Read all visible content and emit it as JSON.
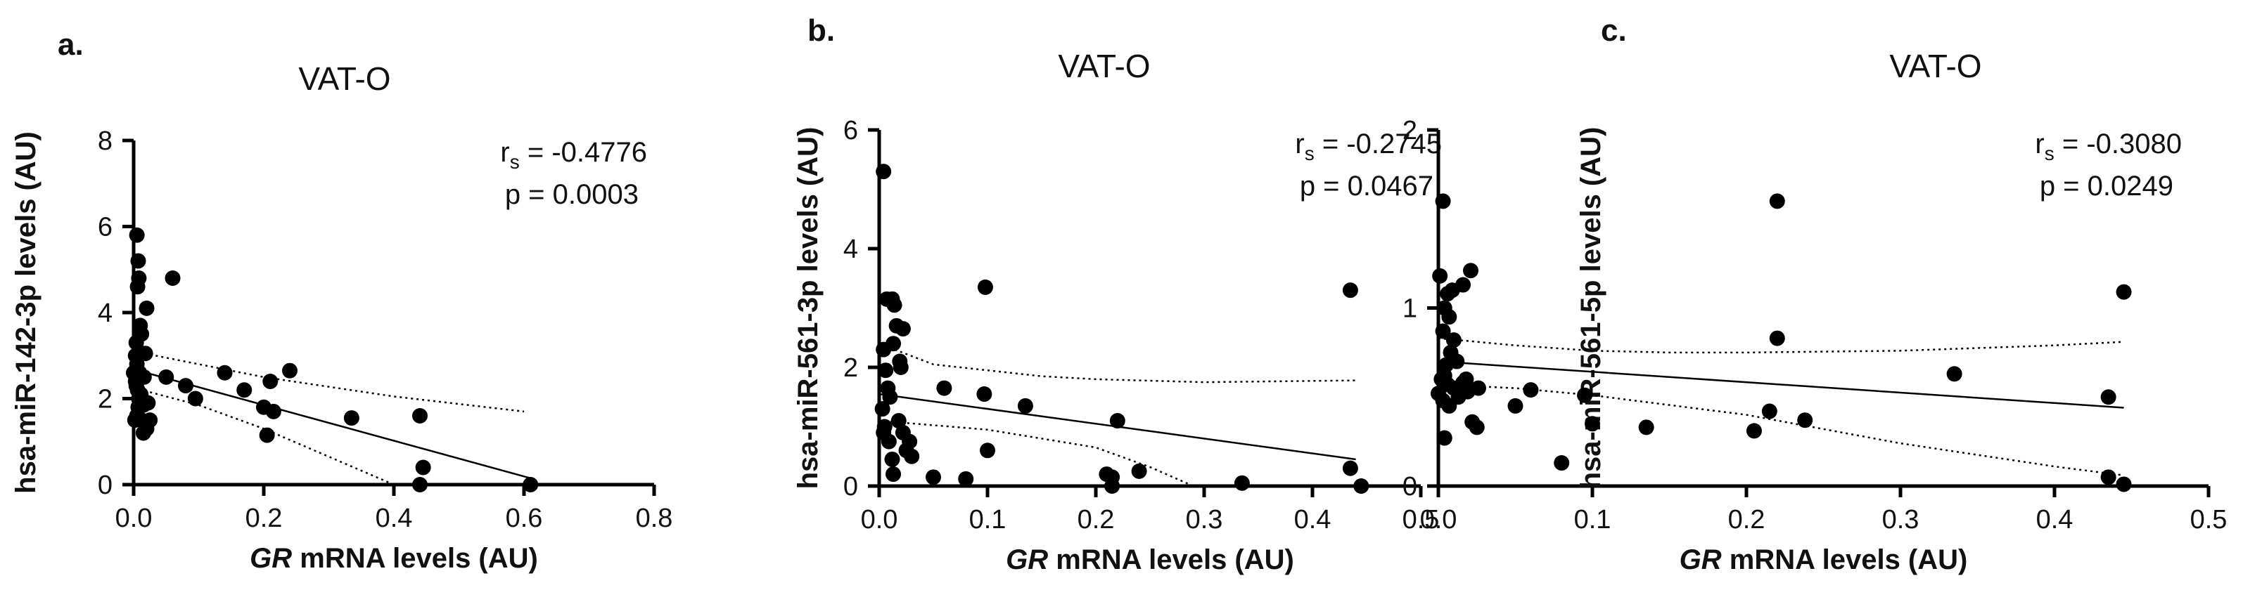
{
  "chart_data": [
    {
      "panel_label": "a.",
      "type": "scatter",
      "title": "VAT-O",
      "xlabel_italic": "GR",
      "xlabel_rest": " mRNA levels (AU)",
      "ylabel": "hsa-miR-142-3p levels (AU)",
      "xlim": [
        0,
        0.8
      ],
      "ylim": [
        0,
        8
      ],
      "xticks": [
        0.0,
        0.2,
        0.4,
        0.6,
        0.8
      ],
      "xtick_labels": [
        "0.0",
        "0.2",
        "0.4",
        "0.6",
        "0.8"
      ],
      "yticks": [
        0,
        2,
        4,
        6,
        8
      ],
      "ytick_labels": [
        "0",
        "2",
        "4",
        "6",
        "8"
      ],
      "stat_r": "r",
      "stat_r_sub": "s",
      "stat_r_value": " = -0.4776",
      "stat_p": "p = 0.0003",
      "points": [
        [
          0.005,
          5.8
        ],
        [
          0.007,
          5.2
        ],
        [
          0.008,
          4.8
        ],
        [
          0.006,
          4.6
        ],
        [
          0.02,
          4.1
        ],
        [
          0.06,
          4.8
        ],
        [
          0.01,
          3.7
        ],
        [
          0.012,
          3.5
        ],
        [
          0.018,
          3.05
        ],
        [
          0.004,
          3.3
        ],
        [
          0.005,
          2.8
        ],
        [
          0.009,
          2.6
        ],
        [
          0.003,
          2.4
        ],
        [
          0.006,
          2.2
        ],
        [
          0.008,
          2.0
        ],
        [
          0.01,
          1.9
        ],
        [
          0.015,
          1.85
        ],
        [
          0.005,
          1.6
        ],
        [
          0.002,
          1.5
        ],
        [
          0.012,
          1.5
        ],
        [
          0.02,
          1.3
        ],
        [
          0.015,
          1.2
        ],
        [
          0.025,
          1.5
        ],
        [
          0.022,
          1.9
        ],
        [
          0.016,
          2.5
        ],
        [
          0.05,
          2.5
        ],
        [
          0.08,
          2.3
        ],
        [
          0.095,
          2.0
        ],
        [
          0.14,
          2.6
        ],
        [
          0.17,
          2.2
        ],
        [
          0.2,
          1.8
        ],
        [
          0.21,
          2.4
        ],
        [
          0.215,
          1.7
        ],
        [
          0.205,
          1.15
        ],
        [
          0.24,
          2.65
        ],
        [
          0.335,
          1.55
        ],
        [
          0.44,
          1.6
        ],
        [
          0.445,
          0.4
        ],
        [
          0.44,
          0.0
        ],
        [
          0.61,
          0.0
        ],
        [
          0.0,
          2.6
        ],
        [
          0.003,
          3.0
        ],
        [
          0.007,
          1.8
        ],
        [
          0.011,
          2.1
        ],
        [
          0.004,
          2.3
        ]
      ],
      "fit": {
        "x": [
          0.0,
          0.61
        ],
        "y": [
          2.68,
          0.15
        ]
      },
      "ci_upper": {
        "x": [
          0.0,
          0.2,
          0.4,
          0.6
        ],
        "y": [
          3.1,
          2.5,
          2.05,
          1.7
        ]
      },
      "ci_lower": {
        "x": [
          0.0,
          0.1,
          0.2,
          0.3,
          0.4
        ],
        "y": [
          2.25,
          1.85,
          1.3,
          0.65,
          0.0
        ]
      }
    },
    {
      "panel_label": "b.",
      "type": "scatter",
      "title": "VAT-O",
      "xlabel_italic": "GR",
      "xlabel_rest": " mRNA levels (AU)",
      "ylabel": "hsa-miR-561-3p levels (AU)",
      "xlim": [
        0,
        0.5
      ],
      "ylim": [
        0,
        6
      ],
      "xticks": [
        0.0,
        0.1,
        0.2,
        0.3,
        0.4,
        0.5
      ],
      "xtick_labels": [
        "0.0",
        "0.1",
        "0.2",
        "0.3",
        "0.4",
        "0.5"
      ],
      "yticks": [
        0,
        2,
        4,
        6
      ],
      "ytick_labels": [
        "0",
        "2",
        "4",
        "6"
      ],
      "stat_r": "r",
      "stat_r_sub": "s",
      "stat_r_value": " = -0.2745",
      "stat_p": "p = 0.0467",
      "points": [
        [
          0.004,
          5.3
        ],
        [
          0.007,
          3.15
        ],
        [
          0.012,
          3.15
        ],
        [
          0.014,
          3.05
        ],
        [
          0.016,
          2.7
        ],
        [
          0.022,
          2.65
        ],
        [
          0.019,
          2.1
        ],
        [
          0.02,
          2.0
        ],
        [
          0.013,
          2.4
        ],
        [
          0.004,
          2.3
        ],
        [
          0.006,
          1.95
        ],
        [
          0.008,
          1.65
        ],
        [
          0.01,
          1.5
        ],
        [
          0.003,
          1.3
        ],
        [
          0.005,
          1.0
        ],
        [
          0.004,
          0.9
        ],
        [
          0.009,
          0.75
        ],
        [
          0.012,
          0.45
        ],
        [
          0.013,
          0.2
        ],
        [
          0.018,
          1.1
        ],
        [
          0.022,
          0.9
        ],
        [
          0.025,
          0.6
        ],
        [
          0.028,
          0.75
        ],
        [
          0.03,
          0.5
        ],
        [
          0.06,
          1.65
        ],
        [
          0.097,
          1.55
        ],
        [
          0.098,
          3.35
        ],
        [
          0.1,
          0.6
        ],
        [
          0.135,
          1.35
        ],
        [
          0.05,
          0.15
        ],
        [
          0.08,
          0.12
        ],
        [
          0.21,
          0.2
        ],
        [
          0.215,
          0.15
        ],
        [
          0.215,
          0.0
        ],
        [
          0.22,
          1.1
        ],
        [
          0.24,
          0.25
        ],
        [
          0.335,
          0.05
        ],
        [
          0.435,
          3.3
        ],
        [
          0.435,
          0.3
        ],
        [
          0.445,
          0.0
        ]
      ],
      "fit": {
        "x": [
          0.0,
          0.44
        ],
        "y": [
          1.55,
          0.45
        ]
      },
      "ci_upper": {
        "x": [
          0.0,
          0.05,
          0.1,
          0.15,
          0.2,
          0.3,
          0.44
        ],
        "y": [
          2.4,
          2.05,
          1.95,
          1.85,
          1.8,
          1.75,
          1.78
        ]
      },
      "ci_lower": {
        "x": [
          0.0,
          0.1,
          0.2,
          0.25,
          0.29
        ],
        "y": [
          1.1,
          0.95,
          0.65,
          0.32,
          0.0
        ]
      }
    },
    {
      "panel_label": "c.",
      "type": "scatter",
      "title": "VAT-O",
      "xlabel_italic": "GR",
      "xlabel_rest": " mRNA levels (AU)",
      "ylabel": "hsa-miR-561-5p levels (AU)",
      "xlim": [
        0,
        0.5
      ],
      "ylim": [
        0,
        2
      ],
      "xticks": [
        0.0,
        0.1,
        0.2,
        0.3,
        0.4,
        0.5
      ],
      "xtick_labels": [
        "0.0",
        "0.1",
        "0.2",
        "0.3",
        "0.4",
        "0.5"
      ],
      "yticks": [
        0,
        1,
        2
      ],
      "ytick_labels": [
        "0",
        "1",
        "2"
      ],
      "stat_r": "r",
      "stat_r_sub": "s",
      "stat_r_value": " = -0.3080",
      "stat_p": "p = 0.0249",
      "points": [
        [
          0.003,
          1.6
        ],
        [
          0.001,
          1.18
        ],
        [
          0.006,
          1.08
        ],
        [
          0.009,
          1.1
        ],
        [
          0.016,
          1.13
        ],
        [
          0.021,
          1.21
        ],
        [
          0.004,
          1.0
        ],
        [
          0.007,
          0.95
        ],
        [
          0.003,
          0.87
        ],
        [
          0.01,
          0.82
        ],
        [
          0.008,
          0.75
        ],
        [
          0.012,
          0.7
        ],
        [
          0.005,
          0.68
        ],
        [
          0.004,
          0.62
        ],
        [
          0.002,
          0.6
        ],
        [
          0.006,
          0.57
        ],
        [
          0.01,
          0.55
        ],
        [
          0.013,
          0.5
        ],
        [
          0.003,
          0.48
        ],
        [
          0.007,
          0.45
        ],
        [
          0.016,
          0.58
        ],
        [
          0.018,
          0.6
        ],
        [
          0.019,
          0.53
        ],
        [
          0.026,
          0.55
        ],
        [
          0.022,
          0.36
        ],
        [
          0.025,
          0.33
        ],
        [
          0.004,
          0.27
        ],
        [
          0.05,
          0.45
        ],
        [
          0.06,
          0.54
        ],
        [
          0.095,
          0.51
        ],
        [
          0.1,
          0.35
        ],
        [
          0.08,
          0.13
        ],
        [
          0.135,
          0.33
        ],
        [
          0.205,
          0.31
        ],
        [
          0.22,
          0.83
        ],
        [
          0.22,
          1.6
        ],
        [
          0.215,
          0.42
        ],
        [
          0.238,
          0.37
        ],
        [
          0.335,
          0.63
        ],
        [
          0.435,
          0.5
        ],
        [
          0.435,
          0.05
        ],
        [
          0.445,
          1.09
        ],
        [
          0.445,
          0.01
        ],
        [
          0.0,
          0.52
        ]
      ],
      "fit": {
        "x": [
          0.0,
          0.445
        ],
        "y": [
          0.7,
          0.44
        ]
      },
      "ci_upper": {
        "x": [
          0.0,
          0.05,
          0.1,
          0.15,
          0.2,
          0.3,
          0.4,
          0.445
        ],
        "y": [
          0.83,
          0.79,
          0.76,
          0.75,
          0.75,
          0.76,
          0.79,
          0.81
        ]
      },
      "ci_lower": {
        "x": [
          0.0,
          0.05,
          0.1,
          0.2,
          0.3,
          0.4,
          0.445
        ],
        "y": [
          0.57,
          0.55,
          0.51,
          0.4,
          0.24,
          0.11,
          0.06
        ]
      }
    }
  ]
}
